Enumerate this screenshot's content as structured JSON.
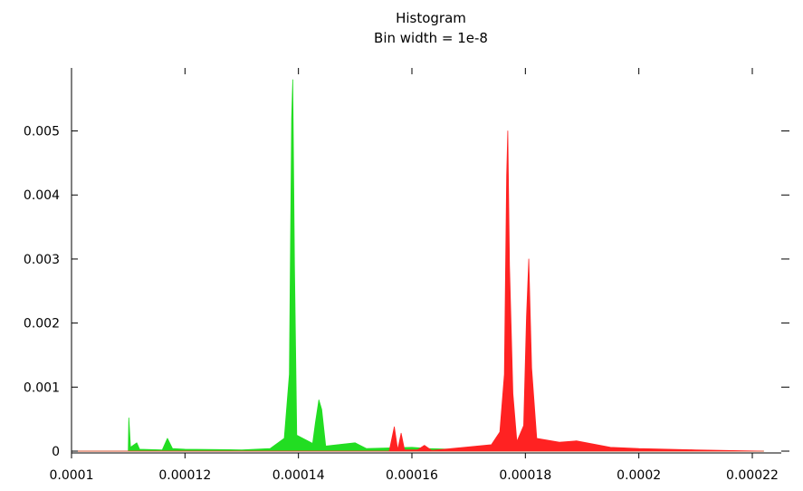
{
  "chart_data": {
    "type": "area",
    "title": "Histogram",
    "subtitle": "Bin width = 1e-8",
    "xlabel": "",
    "ylabel": "",
    "xlim": [
      0.0001,
      0.000222
    ],
    "ylim": [
      0,
      0.0058
    ],
    "x_ticks": [
      0.0001,
      0.00012,
      0.00014,
      0.00016,
      0.00018,
      0.0002,
      0.00022
    ],
    "x_tick_labels": [
      "0.0001",
      "0.00012",
      "0.00014",
      "0.00016",
      "0.00018",
      "0.0002",
      "0.00022"
    ],
    "y_ticks": [
      0,
      0.001,
      0.002,
      0.003,
      0.004,
      0.005
    ],
    "y_tick_labels": [
      "0",
      "0.001",
      "0.002",
      "0.003",
      "0.004",
      "0.005"
    ],
    "grid": false,
    "legend": "none",
    "series": [
      {
        "color": "#22dd22",
        "points": [
          [
            0.0001,
            0
          ],
          [
            0.00011,
            0
          ],
          [
            0.0001101,
            0.00052
          ],
          [
            0.0001104,
            6e-05
          ],
          [
            0.0001115,
            0.00013
          ],
          [
            0.000112,
            3e-05
          ],
          [
            0.000116,
            2e-05
          ],
          [
            0.0001169,
            0.0002
          ],
          [
            0.0001178,
            4e-05
          ],
          [
            0.00012,
            3e-05
          ],
          [
            0.00013,
            2e-05
          ],
          [
            0.000135,
            4e-05
          ],
          [
            0.0001375,
            0.0002
          ],
          [
            0.0001384,
            0.0012
          ],
          [
            0.0001388,
            0.0052
          ],
          [
            0.000139,
            0.0058
          ],
          [
            0.0001393,
            0.0029
          ],
          [
            0.0001397,
            0.00025
          ],
          [
            0.0001425,
            0.00012
          ],
          [
            0.000143,
            0.00045
          ],
          [
            0.0001436,
            0.0008
          ],
          [
            0.0001441,
            0.00065
          ],
          [
            0.0001448,
            8e-05
          ],
          [
            0.00015,
            0.00013
          ],
          [
            0.000152,
            4e-05
          ],
          [
            0.00016,
            6e-05
          ],
          [
            0.000163,
            4e-05
          ],
          [
            0.00017,
            2e-05
          ],
          [
            0.000222,
            0
          ]
        ]
      },
      {
        "color": "#ff2222",
        "points": [
          [
            0.0001,
            0
          ],
          [
            0.000156,
            0
          ],
          [
            0.0001569,
            0.00038
          ],
          [
            0.0001575,
            2e-05
          ],
          [
            0.0001581,
            0.00028
          ],
          [
            0.0001587,
            2e-05
          ],
          [
            0.000161,
            2e-05
          ],
          [
            0.0001622,
            9e-05
          ],
          [
            0.0001635,
            1e-05
          ],
          [
            0.000174,
            0.0001
          ],
          [
            0.0001755,
            0.0003
          ],
          [
            0.0001763,
            0.0012
          ],
          [
            0.0001767,
            0.0043
          ],
          [
            0.0001769,
            0.005
          ],
          [
            0.0001772,
            0.0029
          ],
          [
            0.0001778,
            0.0009
          ],
          [
            0.0001785,
            0.00015
          ],
          [
            0.0001797,
            0.0004
          ],
          [
            0.0001802,
            0.0021
          ],
          [
            0.0001806,
            0.003
          ],
          [
            0.0001811,
            0.0013
          ],
          [
            0.000182,
            0.0002
          ],
          [
            0.000186,
            0.00014
          ],
          [
            0.000189,
            0.00016
          ],
          [
            0.000195,
            6e-05
          ],
          [
            0.0002,
            4e-05
          ],
          [
            0.00021,
            2e-05
          ],
          [
            0.000222,
            0
          ]
        ]
      }
    ]
  }
}
